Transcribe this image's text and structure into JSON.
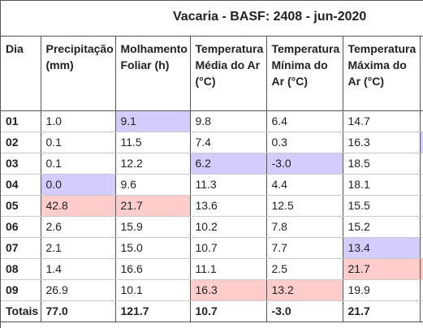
{
  "title": "Vacaria - BASF: 2408 - jun-2020",
  "headers": [
    "Dia",
    "Precipitação (mm)",
    "Molhamento Foliar (h)",
    "Temperatura Média do Ar (°C)",
    "Temperatura Mínima do Ar (°C)",
    "Temperatura Máxima do Ar (°C)"
  ],
  "rows": [
    {
      "day": "01",
      "cells": [
        "1.0",
        "9.1",
        "9.8",
        "6.4",
        "14.7"
      ]
    },
    {
      "day": "02",
      "cells": [
        "0.1",
        "11.5",
        "7.4",
        "0.3",
        "16.3"
      ]
    },
    {
      "day": "03",
      "cells": [
        "0.1",
        "12.2",
        "6.2",
        "-3.0",
        "18.5"
      ]
    },
    {
      "day": "04",
      "cells": [
        "0.0",
        "9.6",
        "11.3",
        "4.4",
        "18.1"
      ]
    },
    {
      "day": "05",
      "cells": [
        "42.8",
        "21.7",
        "13.6",
        "12.5",
        "15.5"
      ]
    },
    {
      "day": "06",
      "cells": [
        "2.6",
        "15.9",
        "10.2",
        "7.8",
        "15.2"
      ]
    },
    {
      "day": "07",
      "cells": [
        "2.1",
        "15.0",
        "10.7",
        "7.7",
        "13.4"
      ]
    },
    {
      "day": "08",
      "cells": [
        "1.4",
        "16.6",
        "11.1",
        "2.5",
        "21.7"
      ]
    },
    {
      "day": "09",
      "cells": [
        "26.9",
        "10.1",
        "16.3",
        "13.2",
        "19.9"
      ]
    }
  ],
  "highlights": {
    "low_color": "#d4ccff",
    "high_color": "#ffcccc",
    "cells": [
      {
        "row": 0,
        "col": 1,
        "kind": "low"
      },
      {
        "row": 1,
        "col": 5,
        "kind": "low"
      },
      {
        "row": 2,
        "col": 2,
        "kind": "low"
      },
      {
        "row": 2,
        "col": 3,
        "kind": "low"
      },
      {
        "row": 3,
        "col": 0,
        "kind": "low"
      },
      {
        "row": 4,
        "col": 0,
        "kind": "high"
      },
      {
        "row": 4,
        "col": 1,
        "kind": "high"
      },
      {
        "row": 6,
        "col": 4,
        "kind": "low"
      },
      {
        "row": 7,
        "col": 4,
        "kind": "high"
      },
      {
        "row": 7,
        "col": 5,
        "kind": "high"
      },
      {
        "row": 8,
        "col": 2,
        "kind": "high"
      },
      {
        "row": 8,
        "col": 3,
        "kind": "high"
      }
    ]
  },
  "totals": {
    "label": "Totais",
    "cells": [
      "77.0",
      "121.7",
      "10.7",
      "-3.0",
      "21.7"
    ]
  }
}
